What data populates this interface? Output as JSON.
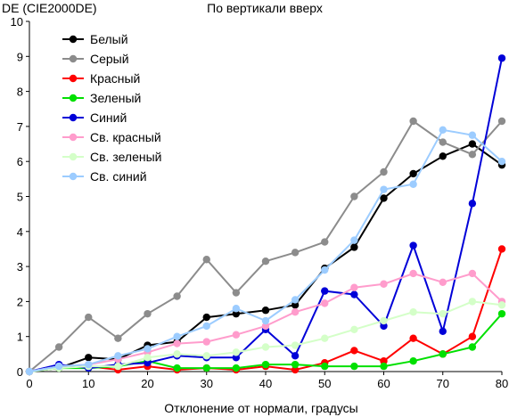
{
  "chart_data": {
    "type": "line",
    "title": "По вертикали вверх",
    "xlabel": "Отклонение от нормали, градусы",
    "ylabel": "DE (CIE2000DE)",
    "xlim": [
      0,
      80
    ],
    "ylim": [
      0,
      10
    ],
    "x_ticks": [
      0,
      10,
      20,
      30,
      40,
      50,
      60,
      70,
      80
    ],
    "y_ticks": [
      0,
      1,
      2,
      3,
      4,
      5,
      6,
      7,
      8,
      9,
      10
    ],
    "grid": false,
    "legend_position": "top-left",
    "x": [
      0,
      5,
      10,
      15,
      20,
      25,
      30,
      35,
      40,
      45,
      50,
      55,
      60,
      65,
      70,
      75,
      80
    ],
    "series": [
      {
        "name": "Белый",
        "color": "#000000",
        "values": [
          0,
          0.1,
          0.4,
          0.35,
          0.75,
          0.85,
          1.55,
          1.65,
          1.75,
          1.9,
          2.95,
          3.55,
          4.95,
          5.65,
          6.15,
          6.5,
          5.9
        ]
      },
      {
        "name": "Серый",
        "color": "#8c8c8c",
        "values": [
          0,
          0.7,
          1.55,
          0.95,
          1.65,
          2.15,
          3.2,
          2.25,
          3.15,
          3.4,
          3.7,
          5.0,
          5.7,
          7.15,
          6.55,
          6.2,
          7.15
        ]
      },
      {
        "name": "Красный",
        "color": "#ff0000",
        "values": [
          0,
          0.15,
          0.15,
          0.05,
          0.15,
          0.05,
          0.1,
          0.05,
          0.15,
          0.05,
          0.25,
          0.6,
          0.3,
          0.95,
          0.5,
          1.0,
          3.5
        ]
      },
      {
        "name": "Зеленый",
        "color": "#00e000",
        "values": [
          0,
          0.1,
          0.1,
          0.15,
          0.3,
          0.1,
          0.1,
          0.1,
          0.2,
          0.2,
          0.15,
          0.15,
          0.15,
          0.3,
          0.5,
          0.7,
          1.65
        ]
      },
      {
        "name": "Синий",
        "color": "#0000d8",
        "values": [
          0,
          0.2,
          0.1,
          0.2,
          0.25,
          0.45,
          0.4,
          0.4,
          1.2,
          0.45,
          2.3,
          2.2,
          1.3,
          3.6,
          1.15,
          4.8,
          8.95
        ]
      },
      {
        "name": "Св. красный",
        "color": "#ff9ccc",
        "values": [
          0,
          0.15,
          0.2,
          0.35,
          0.55,
          0.8,
          0.85,
          1.05,
          1.3,
          1.7,
          1.95,
          2.4,
          2.5,
          2.8,
          2.55,
          2.8,
          2.0
        ]
      },
      {
        "name": "Св. зеленый",
        "color": "#d4ffc8",
        "values": [
          0,
          0.1,
          0.15,
          0.15,
          0.4,
          0.5,
          0.45,
          0.55,
          0.7,
          0.75,
          0.95,
          1.2,
          1.45,
          1.7,
          1.65,
          2.0,
          1.9
        ]
      },
      {
        "name": "Св. синий",
        "color": "#9cccff",
        "values": [
          0,
          0.15,
          0.2,
          0.45,
          0.65,
          1.0,
          1.3,
          1.8,
          1.45,
          2.05,
          2.9,
          3.75,
          5.2,
          5.35,
          6.9,
          6.75,
          6.0
        ]
      }
    ]
  }
}
